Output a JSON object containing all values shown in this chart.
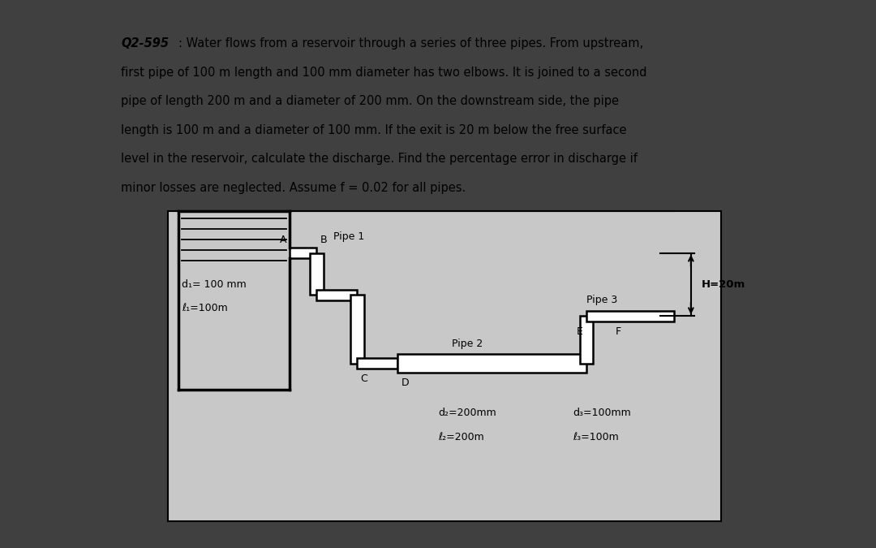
{
  "title": "Q2-595",
  "title_colon": ": Water flows from a reservoir through a series of three pipes. From upstream,",
  "line2": "first pipe of 100 m length and 100 mm diameter has two elbows. It is joined to a second",
  "line3": "pipe of length 200 m and a diameter of 200 mm. On the downstream side, the pipe",
  "line4": "length is 100 m and a diameter of 100 mm. If the exit is 20 m below the free surface",
  "line5": "level in the reservoir, calculate the discharge. Find the percentage error in discharge if",
  "line6": "minor losses are neglected. Assume f = 0.02 for all pipes.",
  "H_label": "H=20m",
  "pipe1_label": "Pipe 1",
  "pipe2_label": "Pipe 2",
  "pipe3_label": "Pipe 3",
  "d1_label": "d₁= 100 mm",
  "l1_label": "ℓ₁=100m",
  "d2_label": "d₂=200mm",
  "l2_label": "ℓ₂=200m",
  "d3_label": "d₃=100mm",
  "l3_label": "ℓ₃=100m",
  "point_A": "A",
  "point_B": "B",
  "point_C": "C",
  "point_D": "D",
  "point_E": "E",
  "point_F": "F",
  "outer_bg": "#404040",
  "inner_bg": "#ffffff",
  "diagram_bg": "#c8c8c8"
}
